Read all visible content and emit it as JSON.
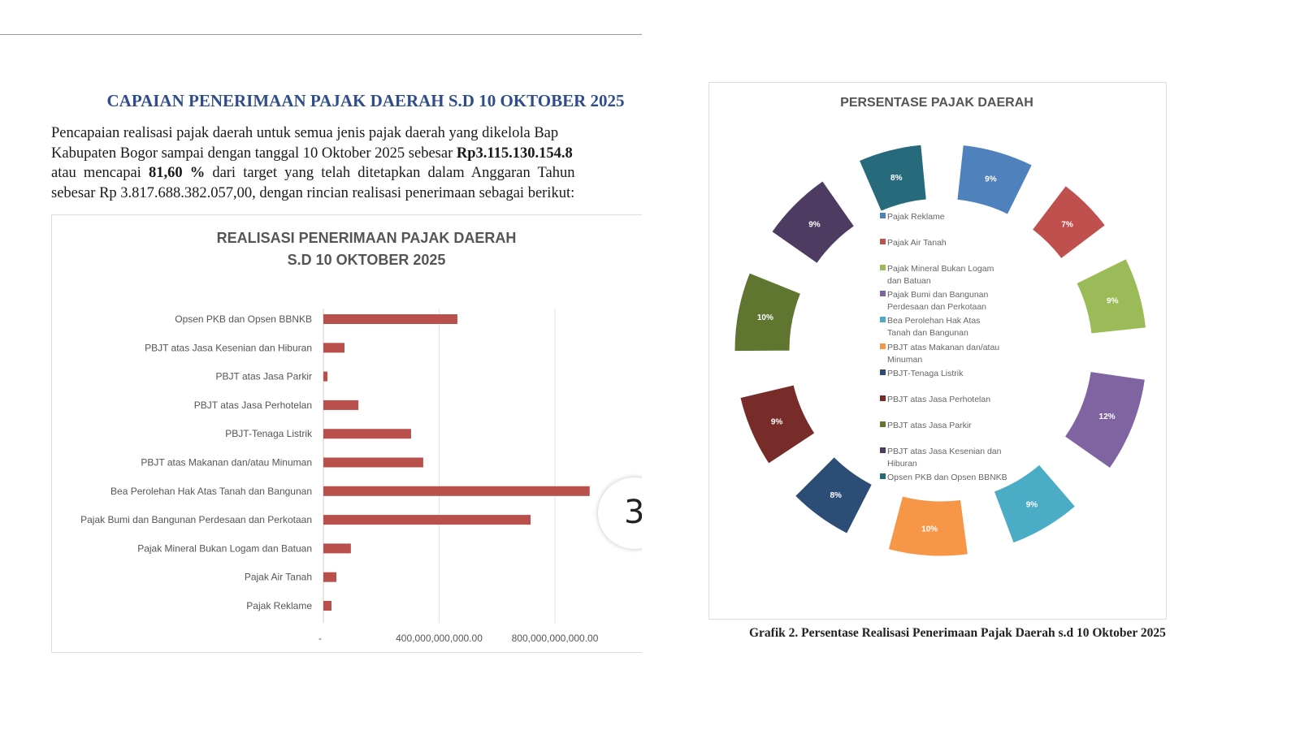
{
  "document": {
    "title": "CAPAIAN PENERIMAAN PAJAK DAERAH S.D 10 OKTOBER 2025",
    "paragraph_lines": [
      {
        "pre": "Pencapaian realisasi pajak daerah untuk semua jenis pajak daerah yang dikelola Bap",
        "bold": "",
        "post": ""
      },
      {
        "pre": "Kabupaten Bogor sampai dengan tanggal 10 Oktober 2025 sebesar ",
        "bold": "Rp3.115.130.154.8",
        "post": ""
      },
      {
        "pre": "atau mencapai ",
        "bold": "81,60 %",
        "post": " dari target yang telah ditetapkan dalam Anggaran Tahun"
      },
      {
        "pre": "sebesar Rp 3.817.688.382.057,00, dengan rincian realisasi penerimaan sebagai berikut:",
        "bold": "",
        "post": ""
      }
    ],
    "page_indicator": "3",
    "caption": "Grafik 2. Persentase Realisasi Penerimaan Pajak Daerah s.d 10 Oktober 2025"
  },
  "chart_data": [
    {
      "type": "bar",
      "orientation": "horizontal",
      "title": "REALISASI PENERIMAAN PAJAK DAERAH",
      "subtitle": "S.D 10 OKTOBER 2025",
      "categories": [
        "Opsen PKB dan Opsen BBNKB",
        "PBJT atas Jasa Kesenian dan Hiburan",
        "PBJT atas Jasa Parkir",
        "PBJT atas Jasa Perhotelan",
        "PBJT-Tenaga Listrik",
        "PBJT atas Makanan dan/atau Minuman",
        "Bea Perolehan Hak Atas Tanah dan Bangunan",
        "Pajak Bumi dan Bangunan Perdesaan dan Perkotaan",
        "Pajak Mineral Bukan Logam dan Batuan",
        "Pajak Air Tanah",
        "Pajak Reklame"
      ],
      "values": [
        463000000000,
        73000000000,
        14000000000,
        121000000000,
        303000000000,
        345000000000,
        920000000000,
        716000000000,
        95000000000,
        45000000000,
        28000000000
      ],
      "xticks": [
        {
          "value": 0,
          "label": "-"
        },
        {
          "value": 400000000000,
          "label": "400,000,000,000.00"
        },
        {
          "value": 800000000000,
          "label": "800,000,000,000.00"
        }
      ],
      "xlim": [
        0,
        1000000000000
      ],
      "grid": true,
      "bar_color": "#b9504c"
    },
    {
      "type": "pie",
      "title": "PERSENTASE PAJAK DAERAH",
      "legend_position": "center",
      "slices": [
        {
          "label": "Pajak Reklame",
          "value": 9,
          "text": "9%",
          "color": "#4f81bd"
        },
        {
          "label": "Pajak Air Tanah",
          "value": 7,
          "text": "7%",
          "color": "#c0504d"
        },
        {
          "label": "Pajak Mineral Bukan Logam dan Batuan",
          "value": 9,
          "text": "9%",
          "color": "#9bbb59"
        },
        {
          "label": "Pajak Bumi dan Bangunan Perdesaan dan Perkotaan",
          "value": 12,
          "text": "12%",
          "color": "#8064a2"
        },
        {
          "label": "Bea Perolehan Hak Atas Tanah dan Bangunan",
          "value": 9,
          "text": "9%",
          "color": "#4bacc6"
        },
        {
          "label": "PBJT atas Makanan dan/atau Minuman",
          "value": 10,
          "text": "10%",
          "color": "#f79646"
        },
        {
          "label": "PBJT-Tenaga Listrik",
          "value": 8,
          "text": "8%",
          "color": "#2c4d75"
        },
        {
          "label": "PBJT atas Jasa Perhotelan",
          "value": 9,
          "text": "9%",
          "color": "#772c2a"
        },
        {
          "label": "PBJT atas Jasa Parkir",
          "value": 10,
          "text": "10%",
          "color": "#5f7530"
        },
        {
          "label": "PBJT atas Jasa Kesenian dan Hiburan",
          "value": 9,
          "text": "9%",
          "color": "#4d3b62"
        },
        {
          "label": "Opsen PKB dan Opsen BBNKB",
          "value": 8,
          "text": "8%",
          "color": "#276a7c"
        }
      ]
    }
  ]
}
